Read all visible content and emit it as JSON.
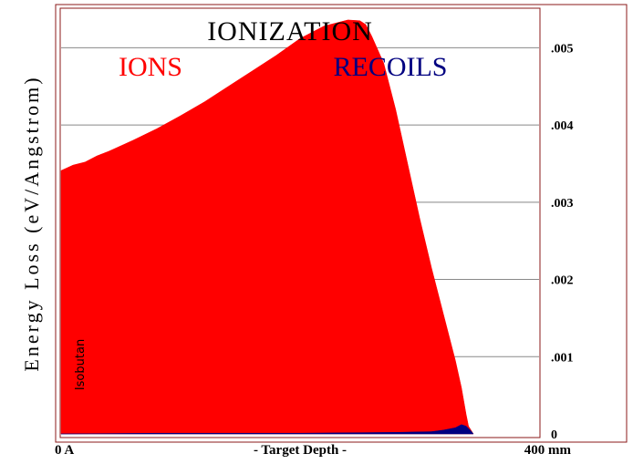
{
  "chart_data": {
    "type": "area",
    "title": "IONIZATION",
    "ylabel": "Energy Loss (eV/Angstrom)",
    "xlabel": "- Target Depth -",
    "x_min_label": "0 A",
    "x_max_label": "400 mm",
    "target_label": "Isobutan",
    "xlim": [
      0,
      400
    ],
    "ylim": [
      0,
      0.0055
    ],
    "y_ticks": [
      0,
      0.001,
      0.002,
      0.003,
      0.004,
      0.005
    ],
    "y_tick_labels": [
      "0",
      ".001",
      ".002",
      ".003",
      ".004",
      ".005"
    ],
    "grid": true,
    "series": [
      {
        "name": "IONS",
        "color": "#ff0000",
        "x": [
          0,
          10,
          20,
          30,
          40,
          60,
          80,
          100,
          120,
          140,
          160,
          180,
          200,
          220,
          240,
          250,
          255,
          260,
          270,
          280,
          290,
          300,
          310,
          320,
          330,
          335,
          339,
          341,
          345
        ],
        "values": [
          0.00341,
          0.00348,
          0.00352,
          0.0036,
          0.00366,
          0.0038,
          0.00395,
          0.00412,
          0.0043,
          0.0045,
          0.0047,
          0.0049,
          0.00512,
          0.00528,
          0.00536,
          0.00535,
          0.0053,
          0.00515,
          0.0048,
          0.0042,
          0.0035,
          0.0028,
          0.00215,
          0.00155,
          0.00095,
          0.0006,
          0.00025,
          0.0001,
          0
        ]
      },
      {
        "name": "RECOILS",
        "color": "#000080",
        "x": [
          0,
          80,
          200,
          280,
          310,
          320,
          330,
          335,
          339,
          343,
          345
        ],
        "values": [
          0,
          1e-05,
          1e-05,
          2e-05,
          3e-05,
          5e-05,
          8e-05,
          0.00012,
          0.0001,
          4e-05,
          0
        ]
      }
    ],
    "colors": {
      "frame": "#8b1a1a",
      "grid": "#888888",
      "ions": "#ff0000",
      "recoils": "#000080"
    }
  }
}
